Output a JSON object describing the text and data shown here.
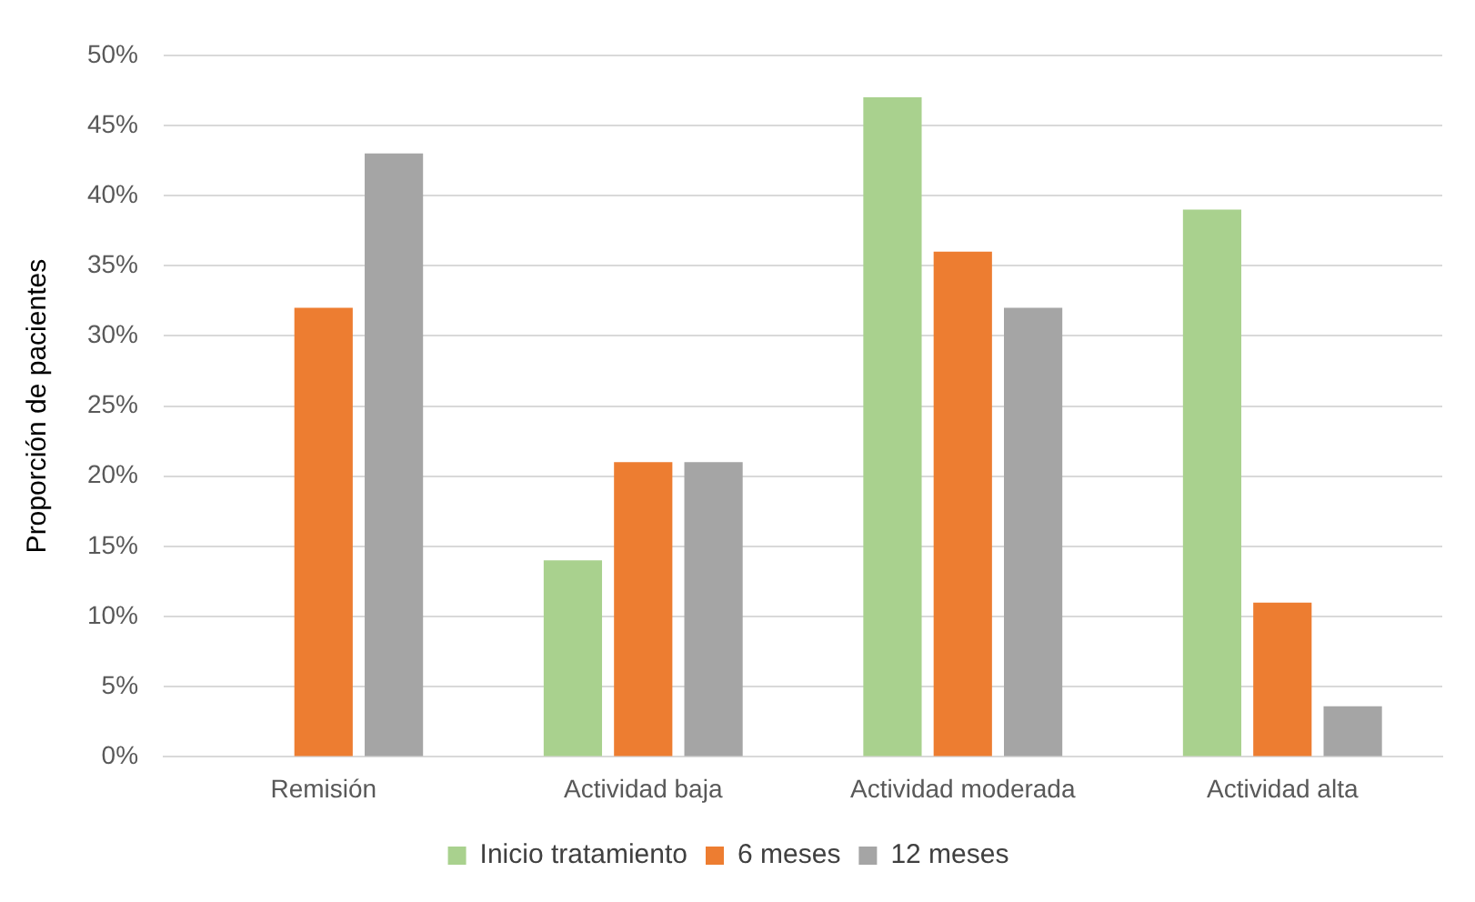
{
  "chart_data": {
    "type": "bar",
    "ylabel": "Proporción de pacientes",
    "categories": [
      "Remisión",
      "Actividad baja",
      "Actividad moderada",
      "Actividad alta"
    ],
    "series": [
      {
        "name": "Inicio tratamiento",
        "color": "#a9d18e",
        "values": [
          0,
          14,
          47,
          39
        ]
      },
      {
        "name": "6 meses",
        "color": "#ed7d31",
        "values": [
          32,
          21,
          36,
          11
        ]
      },
      {
        "name": "12 meses",
        "color": "#a5a5a5",
        "values": [
          43,
          21,
          32,
          3.6
        ]
      }
    ],
    "ylim": [
      0,
      50
    ],
    "yticks": [
      {
        "value": 0,
        "label": "0%"
      },
      {
        "value": 5,
        "label": "5%"
      },
      {
        "value": 10,
        "label": "10%"
      },
      {
        "value": 15,
        "label": "15%"
      },
      {
        "value": 20,
        "label": "20%"
      },
      {
        "value": 25,
        "label": "25%"
      },
      {
        "value": 30,
        "label": "30%"
      },
      {
        "value": 35,
        "label": "35%"
      },
      {
        "value": 40,
        "label": "40%"
      },
      {
        "value": 45,
        "label": "45%"
      },
      {
        "value": 50,
        "label": "50%"
      }
    ],
    "grid": "y",
    "legend": "bottom"
  }
}
